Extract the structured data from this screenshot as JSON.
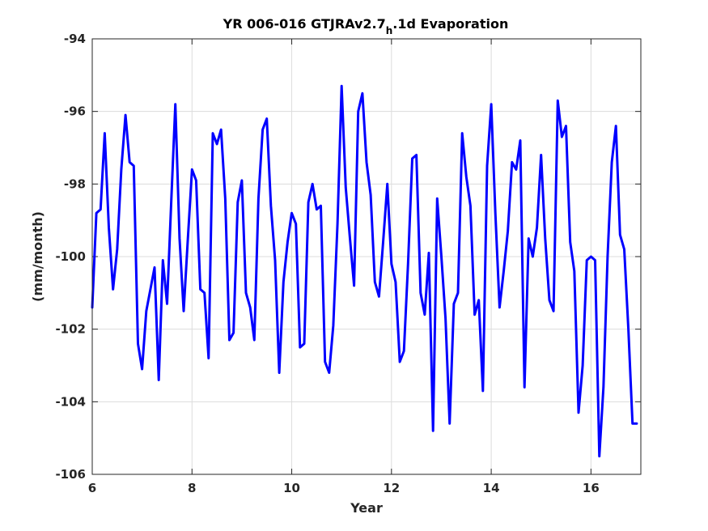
{
  "chart_data": {
    "type": "line",
    "title": {
      "main": "YR 006-016 GTJRAv2.7",
      "subscript": "h",
      "suffix": ".1d Evaporation"
    },
    "xlabel": "Year",
    "ylabel": "(mm/month)",
    "xlim": [
      6,
      17
    ],
    "ylim": [
      -106,
      -94
    ],
    "xticks": [
      6,
      8,
      10,
      12,
      14,
      16
    ],
    "xtick_labels": [
      "6",
      "8",
      "10",
      "12",
      "14",
      "16"
    ],
    "yticks": [
      -106,
      -104,
      -102,
      -100,
      -98,
      -96,
      -94
    ],
    "ytick_labels": [
      "-106",
      "-104",
      "-102",
      "-100",
      "-98",
      "-96",
      "-94"
    ],
    "grid": true,
    "line_color": "#0000ff",
    "series": [
      {
        "x": [
          6.0,
          6.083,
          6.167,
          6.25,
          6.333,
          6.417,
          6.5,
          6.583,
          6.667,
          6.75,
          6.833,
          6.917,
          7.0,
          7.083,
          7.167,
          7.25,
          7.333,
          7.417,
          7.5,
          7.583,
          7.667,
          7.75,
          7.833,
          7.917,
          8.0,
          8.083,
          8.167,
          8.25,
          8.333,
          8.417,
          8.5,
          8.583,
          8.667,
          8.75,
          8.833,
          8.917,
          9.0,
          9.083,
          9.167,
          9.25,
          9.333,
          9.417,
          9.5,
          9.583,
          9.667,
          9.75,
          9.833,
          9.917,
          10.0,
          10.083,
          10.167,
          10.25,
          10.333,
          10.417,
          10.5,
          10.583,
          10.667,
          10.75,
          10.833,
          10.917,
          11.0,
          11.083,
          11.167,
          11.25,
          11.333,
          11.417,
          11.5,
          11.583,
          11.667,
          11.75,
          11.833,
          11.917,
          12.0,
          12.083,
          12.167,
          12.25,
          12.333,
          12.417,
          12.5,
          12.583,
          12.667,
          12.75,
          12.833,
          12.917,
          13.0,
          13.083,
          13.167,
          13.25,
          13.333,
          13.417,
          13.5,
          13.583,
          13.667,
          13.75,
          13.833,
          13.917,
          14.0,
          14.083,
          14.167,
          14.25,
          14.333,
          14.417,
          14.5,
          14.583,
          14.667,
          14.75,
          14.833,
          14.917,
          15.0,
          15.083,
          15.167,
          15.25,
          15.333,
          15.417,
          15.5,
          15.583,
          15.667,
          15.75,
          15.833,
          15.917,
          16.0,
          16.083,
          16.167,
          16.25,
          16.333,
          16.417,
          16.5,
          16.583,
          16.667,
          16.75,
          16.833,
          16.917
        ],
        "y": [
          -101.4,
          -98.8,
          -98.7,
          -96.6,
          -99.2,
          -100.9,
          -99.8,
          -97.6,
          -96.1,
          -97.4,
          -97.5,
          -102.4,
          -103.1,
          -101.5,
          -100.9,
          -100.3,
          -103.4,
          -100.1,
          -101.3,
          -98.5,
          -95.8,
          -99.5,
          -101.5,
          -99.5,
          -97.6,
          -97.9,
          -100.9,
          -101.0,
          -102.8,
          -96.6,
          -96.9,
          -96.5,
          -98.4,
          -102.3,
          -102.1,
          -98.5,
          -97.9,
          -101.0,
          -101.4,
          -102.3,
          -98.4,
          -96.5,
          -96.2,
          -98.6,
          -100.1,
          -103.2,
          -100.7,
          -99.6,
          -98.8,
          -99.1,
          -102.5,
          -102.4,
          -98.5,
          -98.0,
          -98.7,
          -98.6,
          -102.9,
          -103.2,
          -101.9,
          -99.1,
          -95.3,
          -98.1,
          -99.5,
          -100.8,
          -96.0,
          -95.5,
          -97.4,
          -98.3,
          -100.7,
          -101.1,
          -99.6,
          -98.0,
          -100.2,
          -100.7,
          -102.9,
          -102.6,
          -100.2,
          -97.3,
          -97.2,
          -101.0,
          -101.6,
          -99.9,
          -104.8,
          -98.4,
          -100.0,
          -101.7,
          -104.6,
          -101.3,
          -101.0,
          -96.6,
          -97.8,
          -98.6,
          -101.6,
          -101.2,
          -103.7,
          -97.5,
          -95.8,
          -98.8,
          -101.4,
          -100.4,
          -99.3,
          -97.4,
          -97.6,
          -96.8,
          -103.6,
          -99.5,
          -100.0,
          -99.2,
          -97.2,
          -99.5,
          -101.2,
          -101.5,
          -95.7,
          -96.7,
          -96.4,
          -99.6,
          -100.4,
          -104.3,
          -103.0,
          -100.1,
          -100.0,
          -100.1,
          -105.5,
          -103.6,
          -100.0,
          -97.4,
          -96.4,
          -99.4,
          -99.8,
          -102.0,
          -104.6,
          -104.6
        ]
      }
    ]
  }
}
